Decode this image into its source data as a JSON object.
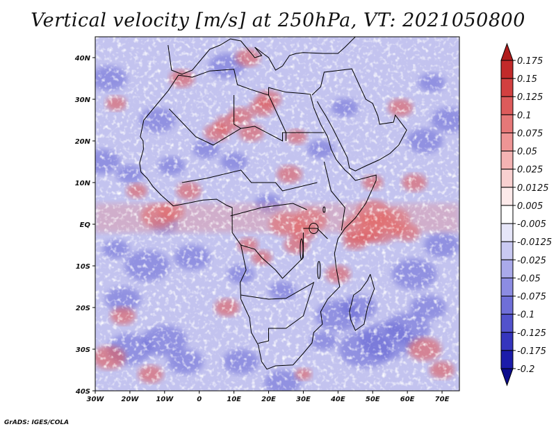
{
  "title": "Vertical velocity [m/s] at 250hPa, VT: 2021050800",
  "credit": "GrADS: IGES/COLA",
  "map": {
    "lon_range": [
      -30,
      75
    ],
    "lat_range": [
      -40,
      45
    ],
    "lat_ticks": [
      {
        "lat": 40,
        "label": "40N"
      },
      {
        "lat": 30,
        "label": "30N"
      },
      {
        "lat": 20,
        "label": "20N"
      },
      {
        "lat": 10,
        "label": "10N"
      },
      {
        "lat": 0,
        "label": "EQ"
      },
      {
        "lat": -10,
        "label": "10S"
      },
      {
        "lat": -20,
        "label": "20S"
      },
      {
        "lat": -30,
        "label": "30S"
      },
      {
        "lat": -40,
        "label": "40S"
      }
    ],
    "lon_ticks": [
      {
        "lon": -30,
        "label": "30W"
      },
      {
        "lon": -20,
        "label": "20W"
      },
      {
        "lon": -10,
        "label": "10W"
      },
      {
        "lon": 0,
        "label": "0"
      },
      {
        "lon": 10,
        "label": "10E"
      },
      {
        "lon": 20,
        "label": "20E"
      },
      {
        "lon": 30,
        "label": "30E"
      },
      {
        "lon": 40,
        "label": "40E"
      },
      {
        "lon": 50,
        "label": "50E"
      },
      {
        "lon": 60,
        "label": "60E"
      },
      {
        "lon": 70,
        "label": "70E"
      }
    ]
  },
  "colorbar": {
    "levels": [
      "0.175",
      "0.15",
      "0.125",
      "0.1",
      "0.075",
      "0.05",
      "0.025",
      "0.0125",
      "0.005",
      "-0.005",
      "-0.0125",
      "-0.025",
      "-0.05",
      "-0.075",
      "-0.1",
      "-0.125",
      "-0.175",
      "-0.2"
    ],
    "colors": [
      "#b01c1c",
      "#c22a2a",
      "#d24040",
      "#dd5b5b",
      "#e67878",
      "#ee9595",
      "#f4b3b3",
      "#f9d0d0",
      "#fdeaea",
      "#ffffff",
      "#e6e6f9",
      "#c9c9f2",
      "#aaaaea",
      "#8c8ce2",
      "#6f6fd8",
      "#5252cc",
      "#3535bd",
      "#1c1caa",
      "#0c0c8c"
    ]
  },
  "features": {
    "positive_cells": [
      [
        -24,
        29,
        2.5
      ],
      [
        -18,
        8,
        2.5
      ],
      [
        -12,
        2,
        4
      ],
      [
        -8,
        3,
        3
      ],
      [
        -3,
        8,
        3
      ],
      [
        5,
        22,
        3
      ],
      [
        8,
        24,
        3
      ],
      [
        12,
        26,
        3
      ],
      [
        15,
        22,
        3
      ],
      [
        18,
        28,
        3
      ],
      [
        20,
        30,
        3
      ],
      [
        28,
        21,
        2.5
      ],
      [
        25,
        0,
        4
      ],
      [
        30,
        -2,
        3
      ],
      [
        32,
        1,
        4
      ],
      [
        28,
        -5,
        3
      ],
      [
        26,
        12,
        3
      ],
      [
        14,
        -5,
        2.5
      ],
      [
        18,
        -8,
        2.5
      ],
      [
        47,
        -1,
        5
      ],
      [
        52,
        -1,
        5
      ],
      [
        56,
        1,
        4
      ],
      [
        50,
        3,
        4
      ],
      [
        60,
        -2,
        3
      ],
      [
        45,
        -4,
        3
      ],
      [
        40,
        -12,
        3
      ],
      [
        -22,
        -22,
        3
      ],
      [
        -26,
        -32,
        4
      ],
      [
        -14,
        -36,
        3
      ],
      [
        30,
        -36,
        2
      ],
      [
        65,
        -30,
        4
      ],
      [
        70,
        -35,
        3
      ],
      [
        58,
        28,
        3
      ],
      [
        62,
        10,
        3
      ],
      [
        50,
        10,
        2.5
      ],
      [
        8,
        -20,
        3
      ],
      [
        -5,
        35,
        3
      ],
      [
        14,
        40,
        3
      ]
    ],
    "negative_cells": [
      [
        -28,
        15,
        4
      ],
      [
        -20,
        12,
        3
      ],
      [
        -15,
        -10,
        5
      ],
      [
        -22,
        -18,
        4
      ],
      [
        -10,
        -28,
        5
      ],
      [
        -20,
        -30,
        5
      ],
      [
        -4,
        -33,
        4
      ],
      [
        12,
        -33,
        4
      ],
      [
        48,
        -30,
        6
      ],
      [
        54,
        -28,
        6
      ],
      [
        60,
        -25,
        5
      ],
      [
        40,
        -22,
        5
      ],
      [
        46,
        -20,
        4
      ],
      [
        62,
        -12,
        5
      ],
      [
        66,
        -20,
        4
      ],
      [
        70,
        -5,
        4
      ],
      [
        65,
        20,
        4
      ],
      [
        72,
        25,
        4
      ],
      [
        -26,
        35,
        4
      ],
      [
        -12,
        25,
        4
      ],
      [
        2,
        18,
        3
      ],
      [
        10,
        15,
        3
      ],
      [
        20,
        5,
        3
      ],
      [
        12,
        -12,
        3
      ],
      [
        24,
        -16,
        3
      ],
      [
        35,
        18,
        3
      ],
      [
        42,
        28,
        3
      ],
      [
        8,
        38,
        4
      ],
      [
        -2,
        -8,
        4
      ],
      [
        -10,
        0,
        3
      ],
      [
        36,
        -28,
        3
      ],
      [
        24,
        -38,
        4
      ],
      [
        -24,
        -6,
        3
      ],
      [
        67,
        34,
        3
      ],
      [
        -8,
        14,
        3
      ]
    ]
  }
}
